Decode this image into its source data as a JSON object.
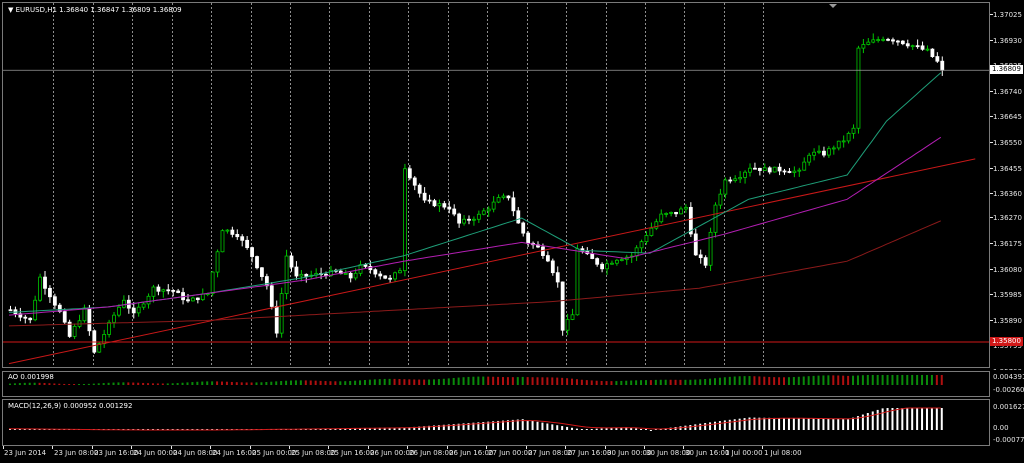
{
  "header": {
    "symbol_text": "EURUSD,H1",
    "ohlc_text": "1.36840 1.36847 1.36809 1.36809"
  },
  "colors": {
    "background": "#000000",
    "bull_candle": "#00c800",
    "bear_candle": "#ffffff",
    "ma_fast": "#1e9e78",
    "ma_mid": "#b21eb2",
    "ma_slow": "#8b1a1a",
    "trendline": "#c81818",
    "h_line": "#d01818",
    "bid_line": "#9a9a9a",
    "grid": "#d0d0d0",
    "ao_up": "#0a8a0a",
    "ao_down": "#b01010",
    "macd_hist": "#ffffff",
    "macd_signal": "#d01818"
  },
  "price_scale": {
    "labels": [
      "1.37025",
      "1.36930",
      "1.36835",
      "1.36740",
      "1.36645",
      "1.36550",
      "1.36455",
      "1.36360",
      "1.36270",
      "1.36175",
      "1.36080",
      "1.35985",
      "1.35890",
      "1.35795",
      "1.35700"
    ],
    "bid_price": "1.36809",
    "hline_price": "1.35800"
  },
  "ao": {
    "label": "AO 0.001998",
    "scale": [
      "0.004391",
      "-0.002602"
    ]
  },
  "macd": {
    "label": "MACD(12,26,9) 0.000952 0.001292",
    "scale": [
      "0.001627",
      "0.00",
      "-0.000779"
    ]
  },
  "time_axis": [
    "23 Jun 2014",
    "23 Jun 08:00",
    "23 Jun 16:00",
    "24 Jun 00:00",
    "24 Jun 08:00",
    "24 Jun 16:00",
    "25 Jun 00:00",
    "25 Jun 08:00",
    "25 Jun 16:00",
    "26 Jun 00:00",
    "26 Jun 08:00",
    "26 Jun 16:00",
    "27 Jun 00:00",
    "27 Jun 08:00",
    "27 Jun 16:00",
    "30 Jun 00:00",
    "30 Jun 08:00",
    "30 Jun 16:00",
    "1 Jul 00:00",
    "1 Jul 08:00"
  ],
  "chart_data": {
    "type": "candlestick",
    "symbol": "EURUSD",
    "timeframe": "H1",
    "ylim": [
      1.357,
      1.3704
    ],
    "keypoints": [
      [
        0,
        1.3592
      ],
      [
        4,
        1.3588
      ],
      [
        6,
        1.3604
      ],
      [
        10,
        1.3591
      ],
      [
        12,
        1.3582
      ],
      [
        15,
        1.3592
      ],
      [
        17,
        1.3576
      ],
      [
        21,
        1.359
      ],
      [
        23,
        1.3596
      ],
      [
        25,
        1.359
      ],
      [
        29,
        1.36
      ],
      [
        33,
        1.3599
      ],
      [
        36,
        1.3595
      ],
      [
        40,
        1.3598
      ],
      [
        43,
        1.3622
      ],
      [
        46,
        1.362
      ],
      [
        49,
        1.3612
      ],
      [
        52,
        1.3601
      ],
      [
        54,
        1.3584
      ],
      [
        56,
        1.3612
      ],
      [
        58,
        1.3604
      ],
      [
        62,
        1.3605
      ],
      [
        66,
        1.3606
      ],
      [
        69,
        1.3604
      ],
      [
        71,
        1.3608
      ],
      [
        73,
        1.3607
      ],
      [
        77,
        1.3603
      ],
      [
        79,
        1.3607
      ],
      [
        80,
        1.3645
      ],
      [
        84,
        1.3632
      ],
      [
        87,
        1.3631
      ],
      [
        89,
        1.363
      ],
      [
        91,
        1.3624
      ],
      [
        95,
        1.3627
      ],
      [
        99,
        1.3633
      ],
      [
        101,
        1.3634
      ],
      [
        103,
        1.3624
      ],
      [
        105,
        1.3617
      ],
      [
        107,
        1.3615
      ],
      [
        109,
        1.3611
      ],
      [
        111,
        1.3602
      ],
      [
        112,
        1.3585
      ],
      [
        114,
        1.359
      ],
      [
        115,
        1.3615
      ],
      [
        117,
        1.3612
      ],
      [
        120,
        1.3608
      ],
      [
        123,
        1.3611
      ],
      [
        126,
        1.3612
      ],
      [
        129,
        1.362
      ],
      [
        132,
        1.3627
      ],
      [
        135,
        1.3628
      ],
      [
        137,
        1.363
      ],
      [
        139,
        1.3612
      ],
      [
        141,
        1.3609
      ],
      [
        143,
        1.3631
      ],
      [
        145,
        1.364
      ],
      [
        148,
        1.3642
      ],
      [
        150,
        1.3645
      ],
      [
        153,
        1.3644
      ],
      [
        157,
        1.3644
      ],
      [
        160,
        1.3643
      ],
      [
        162,
        1.365
      ],
      [
        165,
        1.365
      ],
      [
        169,
        1.3655
      ],
      [
        171,
        1.3659
      ],
      [
        172,
        1.3689
      ],
      [
        174,
        1.3691
      ],
      [
        177,
        1.3693
      ],
      [
        180,
        1.3692
      ],
      [
        183,
        1.369
      ],
      [
        186,
        1.3688
      ],
      [
        188,
        1.3684
      ],
      [
        189,
        1.3681
      ]
    ],
    "series": [
      {
        "name": "MA fast",
        "values": [
          [
            0,
            1.3591
          ],
          [
            20,
            1.3593
          ],
          [
            40,
            1.3598
          ],
          [
            60,
            1.3604
          ],
          [
            80,
            1.3612
          ],
          [
            104,
            1.3626
          ],
          [
            116,
            1.3614
          ],
          [
            130,
            1.3613
          ],
          [
            150,
            1.3633
          ],
          [
            170,
            1.3642
          ],
          [
            178,
            1.3662
          ],
          [
            189,
            1.368
          ]
        ]
      },
      {
        "name": "MA mid",
        "values": [
          [
            0,
            1.359
          ],
          [
            20,
            1.3593
          ],
          [
            40,
            1.3598
          ],
          [
            60,
            1.3603
          ],
          [
            80,
            1.361
          ],
          [
            104,
            1.3617
          ],
          [
            125,
            1.3611
          ],
          [
            145,
            1.362
          ],
          [
            170,
            1.3633
          ],
          [
            189,
            1.3656
          ]
        ]
      },
      {
        "name": "MA slow",
        "values": [
          [
            0,
            1.3586
          ],
          [
            40,
            1.3588
          ],
          [
            80,
            1.3592
          ],
          [
            110,
            1.3595
          ],
          [
            140,
            1.36
          ],
          [
            170,
            1.361
          ],
          [
            189,
            1.3625
          ]
        ]
      }
    ],
    "trendline": [
      [
        0,
        1.3572
      ],
      [
        196,
        1.3648
      ]
    ],
    "hline": 1.358,
    "bid": 1.36809
  }
}
